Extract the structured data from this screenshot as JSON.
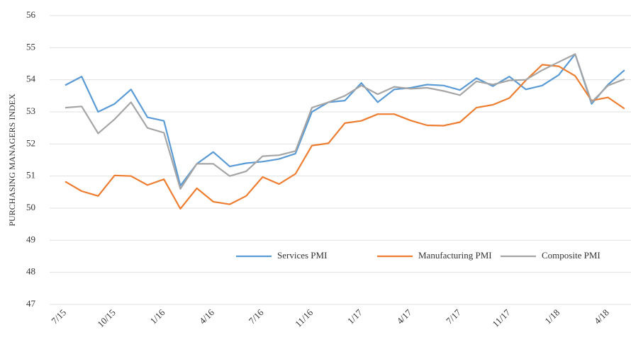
{
  "chart_data": {
    "type": "line",
    "y_label": "PURCHASING MANAGERS INDEX",
    "categories": [
      "7/15",
      null,
      null,
      "10/15",
      null,
      null,
      "1/16",
      null,
      null,
      "4/16",
      null,
      null,
      "7/16",
      null,
      null,
      "11/16",
      null,
      null,
      "1/17",
      null,
      null,
      "4/17",
      null,
      null,
      "7/17",
      null,
      null,
      "11/17",
      null,
      null,
      "1/18",
      null,
      null,
      "4/18",
      null
    ],
    "series": [
      {
        "name": "Services PMI",
        "color": "#5b9bd5",
        "values": [
          53.83,
          54.1,
          53.0,
          53.25,
          53.7,
          52.83,
          52.72,
          50.7,
          51.38,
          51.75,
          51.3,
          51.4,
          51.45,
          51.53,
          51.7,
          53.0,
          53.3,
          53.35,
          53.9,
          53.3,
          53.7,
          53.75,
          53.85,
          53.82,
          53.68,
          54.05,
          53.8,
          54.1,
          53.7,
          53.82,
          54.15,
          54.8,
          53.25,
          53.85,
          54.3
        ]
      },
      {
        "name": "Manufacturing PMI",
        "color": "#ed7d31",
        "values": [
          50.83,
          50.53,
          50.38,
          51.02,
          51.0,
          50.72,
          50.9,
          49.98,
          50.62,
          50.2,
          50.12,
          50.38,
          50.97,
          50.75,
          51.07,
          51.95,
          52.02,
          52.65,
          52.72,
          52.93,
          52.93,
          52.73,
          52.58,
          52.57,
          52.68,
          53.13,
          53.22,
          53.43,
          53.98,
          54.47,
          54.42,
          54.12,
          53.35,
          53.45,
          53.1
        ]
      },
      {
        "name": "Composite PMI",
        "color": "#a5a5a5",
        "values": [
          53.13,
          53.17,
          52.33,
          52.77,
          53.3,
          52.5,
          52.35,
          50.6,
          51.38,
          51.38,
          51.0,
          51.15,
          51.62,
          51.65,
          51.78,
          53.13,
          53.3,
          53.5,
          53.82,
          53.55,
          53.78,
          53.72,
          53.75,
          53.65,
          53.52,
          53.95,
          53.85,
          53.98,
          54.0,
          54.3,
          54.55,
          54.8,
          53.3,
          53.82,
          54.02
        ]
      }
    ],
    "ylim": [
      47,
      56
    ],
    "yticks": [
      47,
      48,
      49,
      50,
      51,
      52,
      53,
      54,
      55,
      56
    ],
    "grid": true
  }
}
